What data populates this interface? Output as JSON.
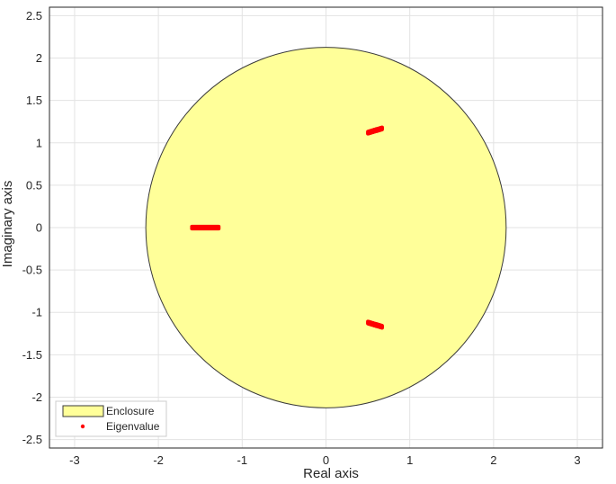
{
  "chart_data": {
    "type": "scatter",
    "xlabel": "Real axis",
    "ylabel": "Imaginary axis",
    "xlim": [
      -3.3,
      3.3
    ],
    "ylim": [
      -2.6,
      2.6
    ],
    "xticks": [
      -3,
      -2,
      -1,
      0,
      1,
      2,
      3
    ],
    "yticks": [
      -2.5,
      -2,
      -1.5,
      -1,
      -0.5,
      0,
      0.5,
      1,
      1.5,
      2,
      2.5
    ],
    "xtick_labels": [
      "-3",
      "-2",
      "-1",
      "0",
      "1",
      "2",
      "3"
    ],
    "ytick_labels": [
      "-2.5",
      "-2",
      "-1.5",
      "-1",
      "-0.5",
      "0",
      "0.5",
      "1",
      "1.5",
      "2",
      "2.5"
    ],
    "grid": true,
    "legend_position": "bottom-left",
    "enclosure": {
      "name": "Enclosure",
      "center": [
        0,
        0
      ],
      "radius": 2.15,
      "fill": "#ffff99",
      "edge": "#3a3a3a"
    },
    "series": [
      {
        "name": "Eigenvalue",
        "color": "#ff0000",
        "clusters": [
          {
            "x_range": [
              -1.6,
              -1.28
            ],
            "y_start": 0.0,
            "y_end": 0.0
          },
          {
            "x_range": [
              0.5,
              0.67
            ],
            "y_start": 1.12,
            "y_end": 1.17
          },
          {
            "x_range": [
              0.5,
              0.67
            ],
            "y_start": -1.12,
            "y_end": -1.17
          }
        ]
      }
    ]
  }
}
